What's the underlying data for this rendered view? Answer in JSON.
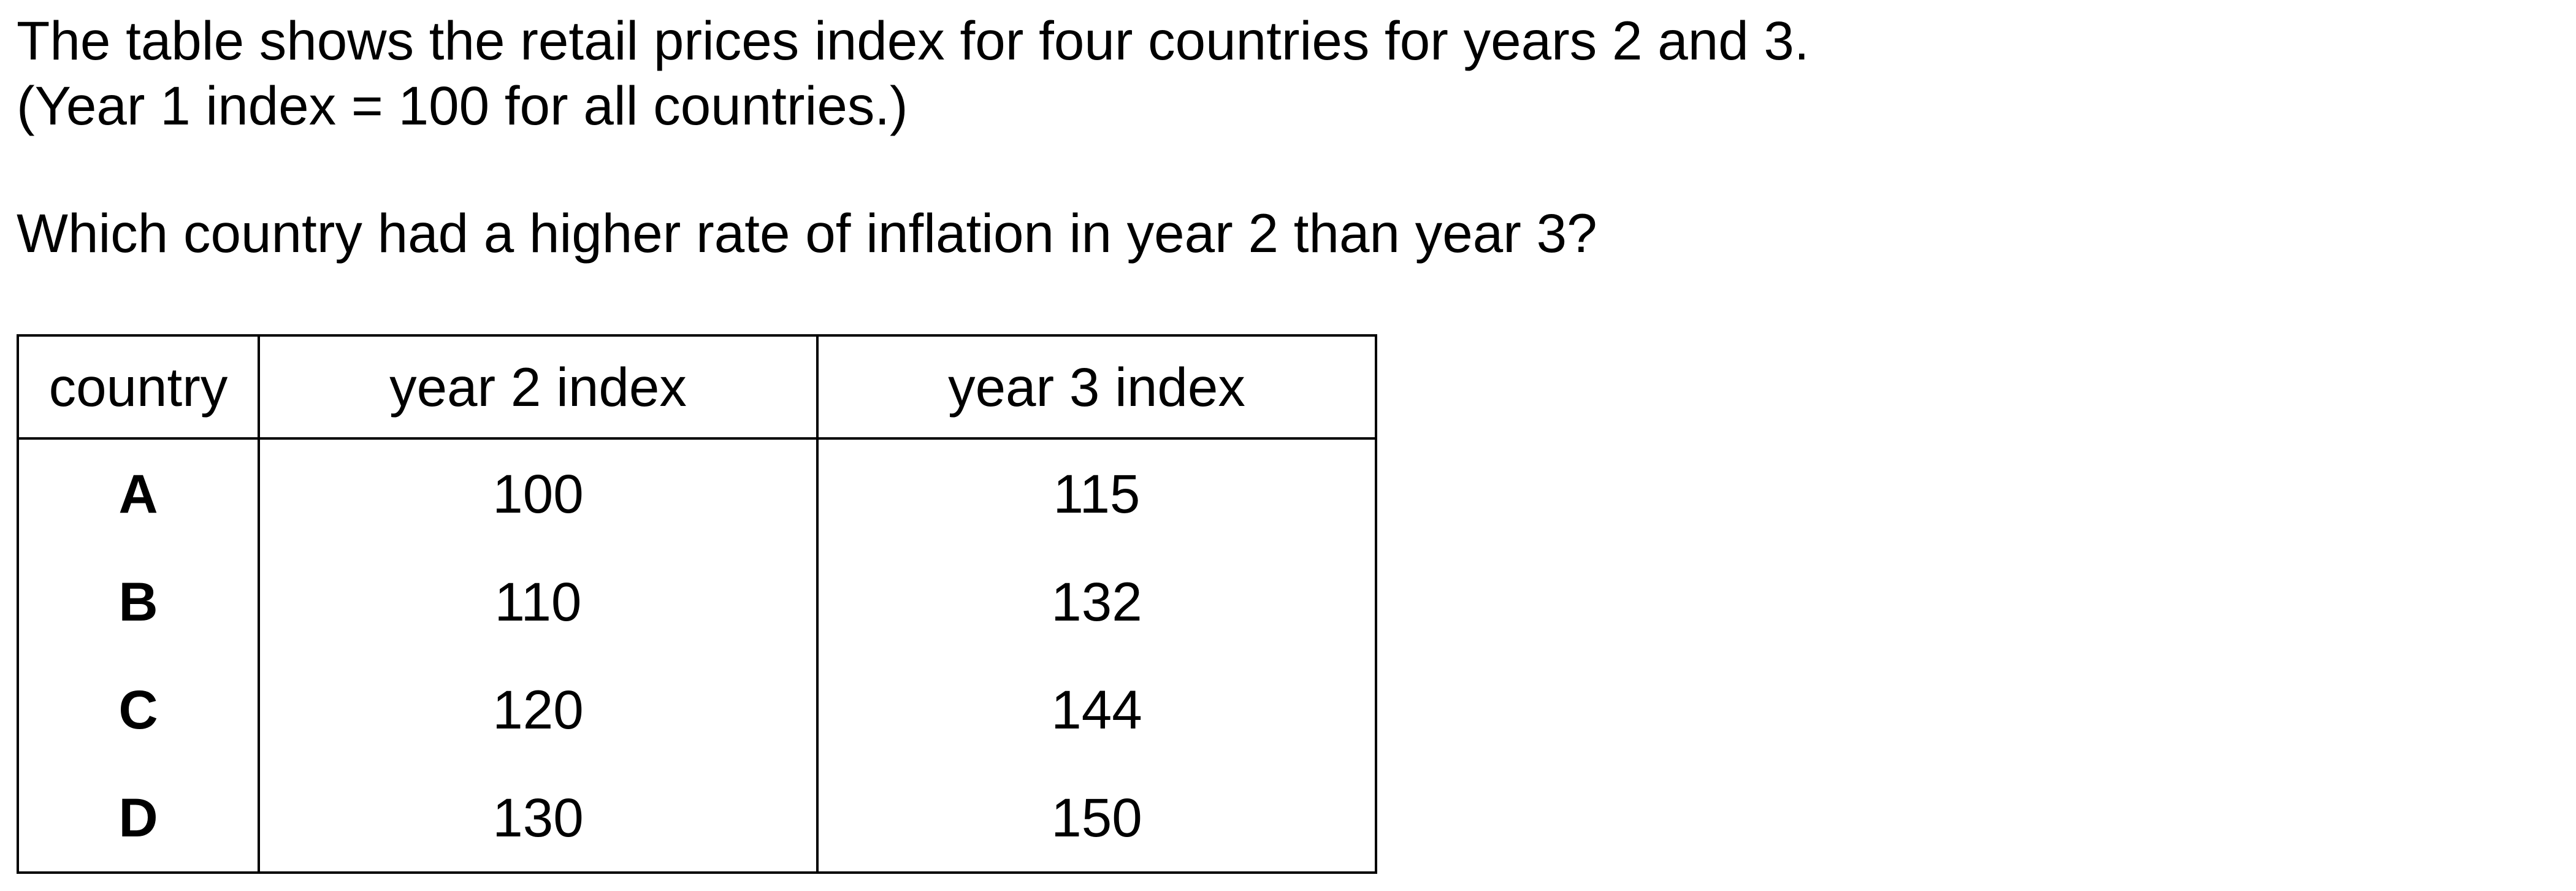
{
  "question": {
    "intro_line1": "The table shows the retail prices index for four countries for years 2 and 3.",
    "intro_line2": "(Year 1 index = 100 for all countries.)",
    "prompt": "Which country had a higher rate of inflation in year 2 than year 3?"
  },
  "table": {
    "headers": [
      "country",
      "year 2 index",
      "year 3 index"
    ],
    "rows": [
      [
        "A",
        "100",
        "115"
      ],
      [
        "B",
        "110",
        "132"
      ],
      [
        "C",
        "120",
        "144"
      ],
      [
        "D",
        "130",
        "150"
      ]
    ]
  }
}
